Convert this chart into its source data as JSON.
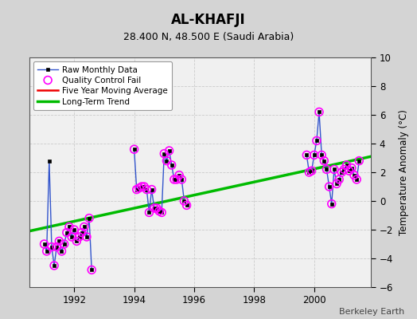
{
  "title": "AL-KHAFJI",
  "subtitle": "28.400 N, 48.500 E (Saudi Arabia)",
  "ylabel": "Temperature Anomaly (°C)",
  "credit": "Berkeley Earth",
  "ylim": [
    -6,
    10
  ],
  "xlim": [
    1990.5,
    2001.9
  ],
  "xticks": [
    1992,
    1994,
    1996,
    1998,
    2000
  ],
  "yticks": [
    -6,
    -4,
    -2,
    0,
    2,
    4,
    6,
    8,
    10
  ],
  "bg_color": "#d4d4d4",
  "plot_bg_color": "#f0f0f0",
  "raw_segments": [
    {
      "x": [
        1991.0,
        1991.083,
        1991.167,
        1991.25,
        1991.333,
        1991.417,
        1991.5,
        1991.583,
        1991.667,
        1991.75,
        1991.833,
        1991.917,
        1992.0,
        1992.083,
        1992.167,
        1992.25,
        1992.333,
        1992.417,
        1992.5,
        1992.583
      ],
      "y": [
        -3.0,
        -3.5,
        2.8,
        -3.2,
        -4.5,
        -3.2,
        -2.8,
        -3.5,
        -3.0,
        -2.2,
        -1.8,
        -2.5,
        -2.0,
        -2.8,
        -2.5,
        -2.2,
        -1.8,
        -2.5,
        -1.2,
        -4.8
      ]
    },
    {
      "x": [
        1994.0,
        1994.083,
        1994.167,
        1994.25,
        1994.333,
        1994.417,
        1994.5,
        1994.583,
        1994.667,
        1994.75,
        1994.833,
        1994.917,
        1995.0,
        1995.083,
        1995.167,
        1995.25,
        1995.333,
        1995.417,
        1995.5,
        1995.583,
        1995.667,
        1995.75
      ],
      "y": [
        3.6,
        0.8,
        0.9,
        1.0,
        1.0,
        0.8,
        -0.8,
        0.8,
        -0.5,
        -0.5,
        -0.7,
        -0.8,
        3.3,
        2.8,
        3.5,
        2.5,
        1.5,
        1.5,
        1.8,
        1.5,
        0.0,
        -0.3
      ]
    },
    {
      "x": [
        1999.75,
        1999.833,
        1999.917,
        2000.0,
        2000.083,
        2000.167,
        2000.25,
        2000.333,
        2000.417,
        2000.5,
        2000.583,
        2000.667,
        2000.75,
        2000.833,
        2000.917,
        2001.0,
        2001.083,
        2001.167,
        2001.25,
        2001.333,
        2001.417,
        2001.5
      ],
      "y": [
        3.2,
        2.0,
        2.1,
        3.2,
        4.2,
        6.2,
        3.2,
        2.8,
        2.2,
        1.0,
        -0.2,
        2.2,
        1.2,
        1.5,
        2.0,
        2.2,
        2.5,
        2.1,
        2.3,
        1.8,
        1.5,
        2.8
      ]
    }
  ],
  "qc_fail_x": [
    1991.0,
    1991.083,
    1991.25,
    1991.333,
    1991.417,
    1991.5,
    1991.583,
    1991.667,
    1991.75,
    1991.833,
    1991.917,
    1992.0,
    1992.083,
    1992.167,
    1992.25,
    1992.333,
    1992.417,
    1992.5,
    1992.583,
    1994.0,
    1994.083,
    1994.167,
    1994.25,
    1994.333,
    1994.417,
    1994.5,
    1994.583,
    1994.667,
    1994.75,
    1994.833,
    1994.917,
    1995.0,
    1995.083,
    1995.167,
    1995.25,
    1995.333,
    1995.417,
    1995.5,
    1995.583,
    1995.667,
    1995.75,
    1999.75,
    1999.833,
    1999.917,
    2000.0,
    2000.083,
    2000.167,
    2000.25,
    2000.333,
    2000.417,
    2000.5,
    2000.583,
    2000.667,
    2000.75,
    2000.833,
    2000.917,
    2001.0,
    2001.083,
    2001.167,
    2001.25,
    2001.333,
    2001.417,
    2001.5
  ],
  "qc_fail_y": [
    -3.0,
    -3.5,
    -3.2,
    -4.5,
    -3.2,
    -2.8,
    -3.5,
    -3.0,
    -2.2,
    -1.8,
    -2.5,
    -2.0,
    -2.8,
    -2.5,
    -2.2,
    -1.8,
    -2.5,
    -1.2,
    -4.8,
    3.6,
    0.8,
    0.9,
    1.0,
    1.0,
    0.8,
    -0.8,
    0.8,
    -0.5,
    -0.5,
    -0.7,
    -0.8,
    3.3,
    2.8,
    3.5,
    2.5,
    1.5,
    1.5,
    1.8,
    1.5,
    0.0,
    -0.3,
    3.2,
    2.0,
    2.1,
    3.2,
    4.2,
    6.2,
    3.2,
    2.8,
    2.2,
    1.0,
    -0.2,
    2.2,
    1.2,
    1.5,
    2.0,
    2.2,
    2.5,
    2.1,
    2.3,
    1.8,
    1.5,
    2.8
  ],
  "trend_x": [
    1990.5,
    2001.9
  ],
  "trend_y": [
    -2.1,
    3.1
  ],
  "raw_line_color": "#3355cc",
  "raw_marker_color": "#000000",
  "qc_color": "#ff00ff",
  "trend_color": "#00bb00",
  "moving_avg_color": "#ee0000",
  "legend_loc": "upper left"
}
